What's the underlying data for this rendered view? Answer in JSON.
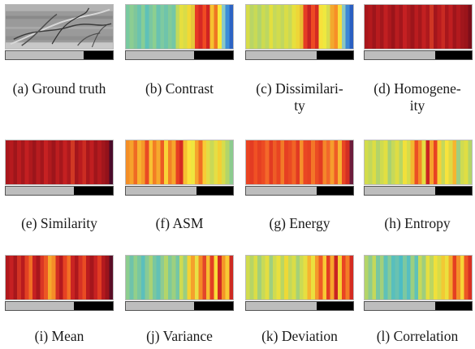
{
  "figure": {
    "panels": [
      {
        "id": "a",
        "caption": "(a) Ground truth",
        "type": "image",
        "split": 0.73
      },
      {
        "id": "b",
        "caption": "(b) Contrast",
        "type": "colormap",
        "split": 0.64,
        "stripes": [
          "#79c9a0",
          "#8ccd92",
          "#7fc69b",
          "#6cc3ae",
          "#88ce95",
          "#5fc1b8",
          "#7bc7a1",
          "#8ccf90",
          "#6ac2b0",
          "#7ecaa0",
          "#6fc4ab",
          "#82cb98",
          "#74c7a6",
          "#c2d95a",
          "#e6df3f",
          "#d9dc48",
          "#f2d935",
          "#e5c83a",
          "#e73a25",
          "#d62924",
          "#f04a22",
          "#cf2322",
          "#f6c130",
          "#ee7723",
          "#f8e83c",
          "#8bc9c6",
          "#3c8ed8",
          "#2c63c4"
        ]
      },
      {
        "id": "c",
        "caption": "(c) Dissimilari-\nty",
        "type": "colormap",
        "split": 0.66,
        "stripes": [
          "#d7dc4a",
          "#b9d566",
          "#c9da55",
          "#b2d46c",
          "#cddb50",
          "#bdd761",
          "#e3df3f",
          "#c5d95b",
          "#d2dc4c",
          "#c1d75e",
          "#d9dd47",
          "#c8d957",
          "#e7e03d",
          "#eed637",
          "#e9bf33",
          "#e53c25",
          "#c72223",
          "#ee4a23",
          "#d42b22",
          "#f7e13b",
          "#efe83f",
          "#d8dc4c",
          "#f3a82d",
          "#f78f27",
          "#f6df3b",
          "#8cc7c0",
          "#3d88d4",
          "#2a5fc2"
        ]
      },
      {
        "id": "d",
        "caption": "(d) Homogene-\nity",
        "type": "colormap",
        "split": 0.66,
        "stripes": [
          "#a8171c",
          "#b3191d",
          "#9e151b",
          "#b81b1e",
          "#a3171c",
          "#c11f21",
          "#ad181d",
          "#9b141a",
          "#b81c1f",
          "#a4161c",
          "#c42022",
          "#b01a1d",
          "#9d151b",
          "#ba1c1f",
          "#a6171c",
          "#c22021",
          "#ad191d",
          "#cf3524",
          "#a3161c",
          "#b81b1e",
          "#c92a22",
          "#a8171c",
          "#bf1e20",
          "#9f151b",
          "#b31a1e",
          "#a1161c",
          "#9a141a",
          "#7d0e19"
        ]
      },
      {
        "id": "e",
        "caption": "(e) Similarity",
        "type": "colormap",
        "split": 0.64,
        "stripes": [
          "#a9171c",
          "#b61a1e",
          "#9f161b",
          "#bb1c1f",
          "#a5171c",
          "#c31f21",
          "#ae191d",
          "#9c151b",
          "#b71c1f",
          "#a4161c",
          "#c62122",
          "#b11a1e",
          "#9e151b",
          "#bc1d1f",
          "#a7171c",
          "#c42021",
          "#ae191d",
          "#d03824",
          "#a4161c",
          "#b91b1e",
          "#cb2c22",
          "#a8171c",
          "#c01e20",
          "#a0161b",
          "#b41a1e",
          "#a2161c",
          "#93121a",
          "#4a0a2a"
        ]
      },
      {
        "id": "f",
        "caption": "(f) ASM",
        "type": "colormap",
        "split": 0.66,
        "stripes": [
          "#f48e27",
          "#f6a22c",
          "#ef6a24",
          "#f7b230",
          "#f59a29",
          "#e94a23",
          "#f8c233",
          "#f37e25",
          "#f6aa2d",
          "#ec5a24",
          "#f9d338",
          "#f28226",
          "#f6a62c",
          "#e73f22",
          "#d62a22",
          "#f7c032",
          "#fbe23c",
          "#efe53f",
          "#f5a52c",
          "#f06e24",
          "#f8cd36",
          "#e3dd45",
          "#c9d957",
          "#e5de44",
          "#f2d035",
          "#d7dc4c",
          "#b3d568",
          "#8ccb8f"
        ]
      },
      {
        "id": "g",
        "caption": "(g) Energy",
        "type": "colormap",
        "split": 0.66,
        "stripes": [
          "#ea4422",
          "#e33c23",
          "#f05124",
          "#e54022",
          "#ec4a23",
          "#f4682a",
          "#e23b22",
          "#ee5c26",
          "#e84422",
          "#f27a28",
          "#e63f22",
          "#ea4a23",
          "#f16326",
          "#e13a22",
          "#f6902b",
          "#ea4623",
          "#e64122",
          "#f37628",
          "#eb4c23",
          "#e23b22",
          "#f5862a",
          "#f1682a",
          "#f69d2d",
          "#ee5c26",
          "#f7b232",
          "#e94623",
          "#d32f22",
          "#6c1c3c"
        ]
      },
      {
        "id": "h",
        "caption": "(h) Entropy",
        "type": "colormap",
        "split": 0.66,
        "stripes": [
          "#d3dc4c",
          "#c2d85c",
          "#dcdd45",
          "#b4d468",
          "#cfdb50",
          "#e2df41",
          "#a9d172",
          "#c6d959",
          "#dedd44",
          "#b9d663",
          "#f1e03b",
          "#d6dc4a",
          "#f3b82f",
          "#eb4f24",
          "#f48a28",
          "#e4dd42",
          "#ca2422",
          "#f6a32c",
          "#e84323",
          "#f7d236",
          "#c5d85a",
          "#f8e33c",
          "#deda45",
          "#f6b430",
          "#9fcf80",
          "#cfdb52",
          "#e0de43",
          "#b3d56a"
        ]
      },
      {
        "id": "i",
        "caption": "(i) Mean",
        "type": "colormap",
        "split": 0.64,
        "stripes": [
          "#b1191d",
          "#c52022",
          "#a7171c",
          "#d23323",
          "#b71b1e",
          "#e24123",
          "#f16e25",
          "#c62122",
          "#a9171c",
          "#d93724",
          "#ec5724",
          "#f5a92d",
          "#f58d28",
          "#d12d23",
          "#b41a1e",
          "#e64223",
          "#f26f25",
          "#c92422",
          "#ad181d",
          "#d63224",
          "#e94c23",
          "#ba1c1f",
          "#a5161c",
          "#c72222",
          "#e13c23",
          "#b51a1e",
          "#9a141b",
          "#5a0d26"
        ]
      },
      {
        "id": "j",
        "caption": "(j) Variance",
        "type": "colormap",
        "split": 0.64,
        "stripes": [
          "#8dcd8f",
          "#6fc3ab",
          "#93cf8a",
          "#79c7a1",
          "#5bbfbc",
          "#88ca96",
          "#a9d275",
          "#7ac79f",
          "#63c1b5",
          "#8ecb92",
          "#b3d56a",
          "#7fc99b",
          "#9dd07f",
          "#75c6a5",
          "#cfdb51",
          "#9ace82",
          "#f3d234",
          "#f5a02c",
          "#e8e045",
          "#f58827",
          "#e3462a",
          "#f6bc31",
          "#e23f23",
          "#f9db38",
          "#d12c24",
          "#f49628",
          "#f8ca34",
          "#cd2a22"
        ]
      },
      {
        "id": "k",
        "caption": "(k) Deviation",
        "type": "colormap",
        "split": 0.66,
        "stripes": [
          "#d1db4f",
          "#b6d566",
          "#dcdd46",
          "#a3d07a",
          "#c7da58",
          "#e3de42",
          "#9fcf7f",
          "#cfdb51",
          "#e8e03f",
          "#b9d663",
          "#edd937",
          "#c2d85c",
          "#dadd47",
          "#a6d177",
          "#ccdb53",
          "#e6df41",
          "#f6b430",
          "#ebe03e",
          "#f4992b",
          "#ee5b26",
          "#f8c834",
          "#e13c23",
          "#f7a62d",
          "#c82323",
          "#f6d035",
          "#e94423",
          "#f37d26",
          "#d42b22"
        ]
      },
      {
        "id": "l",
        "caption": "(l) Correlation",
        "type": "colormap",
        "split": 0.66,
        "stripes": [
          "#b4d568",
          "#8fcc8e",
          "#c4d85b",
          "#78c7a2",
          "#a2d07b",
          "#5fc1b8",
          "#86cb97",
          "#58bfbd",
          "#69c2b1",
          "#4dbcc4",
          "#7dc8a0",
          "#57bec0",
          "#9ccf80",
          "#61c1b7",
          "#c6d95a",
          "#9ece7e",
          "#e5df41",
          "#bdd661",
          "#f0e03b",
          "#d8dc48",
          "#f2c934",
          "#ebe03e",
          "#f5a82d",
          "#e53f22",
          "#f49028",
          "#f7d637",
          "#ec5624",
          "#d93023"
        ]
      }
    ]
  }
}
